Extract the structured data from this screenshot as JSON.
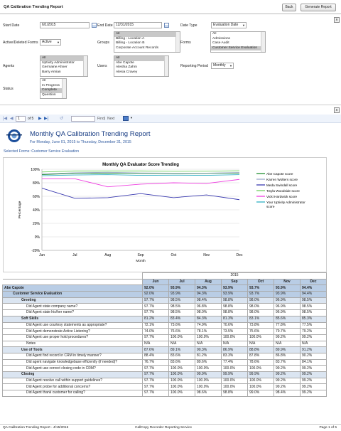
{
  "window": {
    "title": "QA Calibration Trending Report"
  },
  "buttons": {
    "back": "Back",
    "generate": "Generate Report"
  },
  "filters": {
    "start_date_label": "Start Date",
    "start_date_value": "6/1/2015",
    "end_date_label": "End Date",
    "end_date_value": "12/31/2015",
    "date_type_label": "Date Type",
    "date_type_value": "Evaluation Date",
    "active_deleted_label": "Active/Deleted Forms",
    "active_deleted_value": "Active",
    "groups_label": "Groups",
    "groups_options": [
      "All",
      "Billing - Location A",
      "Billing - Location B",
      "Corporate Account Records"
    ],
    "forms_label": "Forms",
    "forms_options": [
      "All",
      "Admissions",
      "Case Audit",
      "Customer Service Evaluation"
    ],
    "agents_label": "Agents",
    "agents_options": [
      "All",
      "Uptivity Administrator",
      "Germaine Ahner",
      "Barry Amian"
    ],
    "users_label": "Users",
    "users_options": [
      "All",
      "Abe Capote",
      "Aleshia Zahm",
      "Alesia Cravey"
    ],
    "reporting_period_label": "Reporting Period",
    "reporting_period_value": "Monthly",
    "status_label": "Status",
    "status_options": [
      "All",
      "In Progress",
      "Complete",
      "Question"
    ]
  },
  "toolbar": {
    "page_current": "1",
    "page_of": "of 5",
    "find": "Find",
    "next": "Next",
    "first_icon": "first-page-icon",
    "prev_icon": "prev-page-icon",
    "next_icon": "next-page-icon",
    "last_icon": "last-page-icon",
    "refresh_icon": "refresh-icon",
    "export_icon": "export-icon"
  },
  "report": {
    "title": "Monthly QA Calibration Trending Report",
    "subtitle": "For Monday, June 01, 2015 to Thursday, December 31, 2015",
    "selected_forms": "Selected Forms: Customer Service Evaluation"
  },
  "chart_data": {
    "type": "line",
    "title": "Monthly QA Evaluator Score Trending",
    "xlabel": "Month",
    "ylabel": "Percentage",
    "categories": [
      "Jun",
      "Jul",
      "Aug",
      "Sep",
      "Oct",
      "Nov",
      "Dec"
    ],
    "ylim": [
      -20,
      100
    ],
    "yticks": [
      "100%",
      "80%",
      "60%",
      "40%",
      "20%",
      "0%",
      "-20%"
    ],
    "legend_position": "right",
    "series": [
      {
        "name": "Abe Capote score",
        "color": "#1f8f2f",
        "values": [
          92.0,
          93.9,
          94.3,
          93.9,
          93.7,
          93.9,
          94.4
        ]
      },
      {
        "name": "Karren Wolters score",
        "color": "#9aa9c8",
        "values": [
          93.2,
          94.8,
          95.5,
          94.5,
          94.3,
          94.3,
          95.2
        ]
      },
      {
        "name": "Meda Swindall score",
        "color": "#3a3ab0",
        "values": [
          72.0,
          57.0,
          58.0,
          64.0,
          58.0,
          62.0,
          55.0
        ]
      },
      {
        "name": "Twyla Woodside score",
        "color": "#6fcf5f",
        "values": [
          96.0,
          97.5,
          97.5,
          97.5,
          97.0,
          97.2,
          97.8
        ]
      },
      {
        "name": "Vicki Hardwick score",
        "color": "#ee3fe0",
        "values": [
          86.0,
          86.0,
          74.0,
          78.0,
          80.0,
          79.0,
          85.0
        ]
      },
      {
        "name": "Your Uptivity Administrator score",
        "color": "#2fb0c4",
        "values": [
          90.5,
          91.5,
          92.0,
          91.0,
          91.3,
          91.0,
          92.0
        ]
      }
    ]
  },
  "table": {
    "year": "2015",
    "months": [
      "Jun",
      "Jul",
      "Aug",
      "Sep",
      "Oct",
      "Nov",
      "Dec"
    ],
    "rows": [
      {
        "level": 0,
        "label": "Abe Capote",
        "values": [
          "92.0%",
          "93.9%",
          "94.3%",
          "93.9%",
          "93.7%",
          "93.9%",
          "94.4%"
        ]
      },
      {
        "level": 1,
        "label": "Customer Service Evaluation",
        "values": [
          "92.0%",
          "93.9%",
          "94.3%",
          "93.9%",
          "93.7%",
          "93.9%",
          "94.4%"
        ]
      },
      {
        "level": 2,
        "label": "Greeting",
        "values": [
          "97.7%",
          "98.5%",
          "98.4%",
          "98.8%",
          "98.0%",
          "96.9%",
          "98.5%"
        ]
      },
      {
        "level": 3,
        "label": "Did Agent state company name?",
        "values": [
          "97.7%",
          "98.5%",
          "96.8%",
          "98.8%",
          "98.0%",
          "96.9%",
          "98.5%"
        ]
      },
      {
        "level": 3,
        "label": "Did Agent state his/her name?",
        "values": [
          "97.7%",
          "98.5%",
          "98.0%",
          "98.8%",
          "98.0%",
          "96.9%",
          "98.5%"
        ]
      },
      {
        "level": 2,
        "label": "Soft Skills",
        "values": [
          "81.2%",
          "83.4%",
          "84.3%",
          "81.3%",
          "83.1%",
          "85.6%",
          "85.3%"
        ]
      },
      {
        "level": 3,
        "label": "Did Agent use courtesy statements as appropriate?",
        "values": [
          "72.1%",
          "73.6%",
          "74.9%",
          "70.6%",
          "73.8%",
          "77.8%",
          "77.5%"
        ]
      },
      {
        "level": 3,
        "label": "Did Agent demonstrate Active Listening?",
        "values": [
          "74.0%",
          "76.6%",
          "78.1%",
          "73.5%",
          "75.6%",
          "79.7%",
          "79.2%"
        ]
      },
      {
        "level": 3,
        "label": "Did Agent use proper hold procedures?",
        "values": [
          "97.7%",
          "100.0%",
          "100.0%",
          "100.0%",
          "100.0%",
          "99.2%",
          "99.2%"
        ]
      },
      {
        "level": 3,
        "label": "Notes",
        "values": [
          "N/A",
          "N/A",
          "N/A",
          "N/A",
          "N/A",
          "N/A",
          "N/A"
        ]
      },
      {
        "level": 2,
        "label": "Use of Tools",
        "values": [
          "87.6%",
          "89.1%",
          "90.3%",
          "86.9%",
          "88.8%",
          "89.9%",
          "91.2%"
        ]
      },
      {
        "level": 3,
        "label": "Did Agent find record in CRM in timely manner?",
        "values": [
          "88.4%",
          "83.6%",
          "81.2%",
          "83.3%",
          "87.8%",
          "86.8%",
          "90.2%"
        ]
      },
      {
        "level": 3,
        "label": "Did agent navigate knowledgebase efficiently (if needed)?",
        "values": [
          "76.7%",
          "83.6%",
          "89.6%",
          "77.4%",
          "78.6%",
          "83.7%",
          "84.1%"
        ]
      },
      {
        "level": 3,
        "label": "Did Agent use correct closing code in CRM?",
        "values": [
          "97.7%",
          "100.0%",
          "100.0%",
          "100.0%",
          "100.0%",
          "99.2%",
          "99.2%"
        ]
      },
      {
        "level": 2,
        "label": "Closing",
        "values": [
          "97.7%",
          "100.0%",
          "99.9%",
          "99.9%",
          "99.9%",
          "99.2%",
          "99.2%"
        ]
      },
      {
        "level": 3,
        "label": "Did Agent resolve call within support guidelines?",
        "values": [
          "97.7%",
          "100.0%",
          "100.0%",
          "100.0%",
          "100.0%",
          "99.2%",
          "99.2%"
        ]
      },
      {
        "level": 3,
        "label": "Did Agent probe for additional concerns?",
        "values": [
          "97.7%",
          "100.0%",
          "100.0%",
          "100.0%",
          "100.0%",
          "99.2%",
          "99.2%"
        ]
      },
      {
        "level": 3,
        "label": "Did Agent thank customer for calling?",
        "values": [
          "97.7%",
          "100.0%",
          "98.6%",
          "98.8%",
          "99.0%",
          "98.4%",
          "99.2%"
        ]
      }
    ]
  },
  "footer": {
    "left": "QA Calibration Trending Report - 4/15/2016",
    "center": "CallCopy Recorder Reporting Service",
    "right": "Page 1 of 5"
  }
}
